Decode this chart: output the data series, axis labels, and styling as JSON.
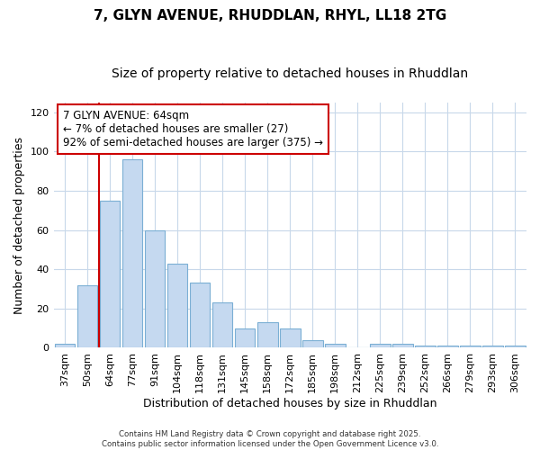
{
  "title1": "7, GLYN AVENUE, RHUDDLAN, RHYL, LL18 2TG",
  "title2": "Size of property relative to detached houses in Rhuddlan",
  "xlabel": "Distribution of detached houses by size in Rhuddlan",
  "ylabel": "Number of detached properties",
  "categories": [
    "37sqm",
    "50sqm",
    "64sqm",
    "77sqm",
    "91sqm",
    "104sqm",
    "118sqm",
    "131sqm",
    "145sqm",
    "158sqm",
    "172sqm",
    "185sqm",
    "198sqm",
    "212sqm",
    "225sqm",
    "239sqm",
    "252sqm",
    "266sqm",
    "279sqm",
    "293sqm",
    "306sqm"
  ],
  "values": [
    2,
    32,
    75,
    96,
    60,
    43,
    33,
    23,
    10,
    13,
    10,
    4,
    2,
    0,
    2,
    2,
    1,
    1,
    1,
    1,
    1
  ],
  "bar_color": "#c5d9f0",
  "bar_edge_color": "#7bafd4",
  "highlight_index": 2,
  "highlight_color": "#cc0000",
  "ylim": [
    0,
    125
  ],
  "yticks": [
    0,
    20,
    40,
    60,
    80,
    100,
    120
  ],
  "annotation_title": "7 GLYN AVENUE: 64sqm",
  "annotation_line1": "← 7% of detached houses are smaller (27)",
  "annotation_line2": "92% of semi-detached houses are larger (375) →",
  "annotation_box_color": "#ffffff",
  "annotation_box_edge": "#cc0000",
  "footer1": "Contains HM Land Registry data © Crown copyright and database right 2025.",
  "footer2": "Contains public sector information licensed under the Open Government Licence v3.0.",
  "bg_color": "#ffffff",
  "plot_bg_color": "#ffffff",
  "grid_color": "#c8d8ea",
  "title_fontsize": 11,
  "subtitle_fontsize": 10,
  "ann_fontsize": 8.5
}
